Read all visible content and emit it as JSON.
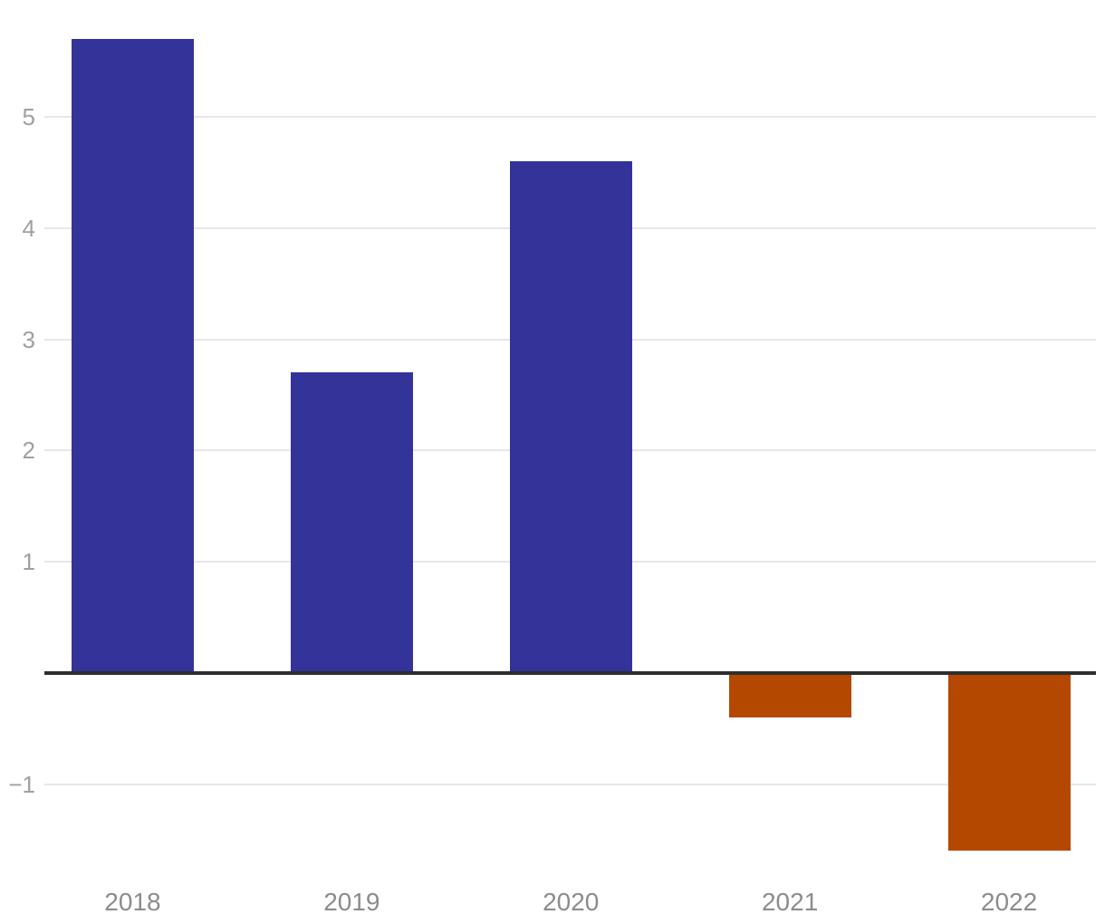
{
  "chart_data": {
    "type": "bar",
    "title": "",
    "xlabel": "",
    "ylabel": "",
    "categories": [
      "2018",
      "2019",
      "2020",
      "2021",
      "2022"
    ],
    "values": [
      5.7,
      2.7,
      4.6,
      -0.4,
      -1.6
    ],
    "yticks": [
      {
        "value": 5,
        "label": "5"
      },
      {
        "value": 4,
        "label": "4"
      },
      {
        "value": 3,
        "label": "3"
      },
      {
        "value": 2,
        "label": "2"
      },
      {
        "value": 1,
        "label": "1"
      },
      {
        "value": -1,
        "label": "−1"
      }
    ],
    "ylim": [
      -1.8,
      6.05
    ],
    "grid": true,
    "legend": false,
    "baseline_value": 0,
    "colors": {
      "positive_bar": "#343399",
      "negative_bar": "#B44800",
      "gridline": "#e7e7e7",
      "zero_line": "#2e2e2e",
      "y_tick_label": "#a0a0a0",
      "x_axis_label": "#8c8c8c",
      "background": "#ffffff"
    }
  }
}
